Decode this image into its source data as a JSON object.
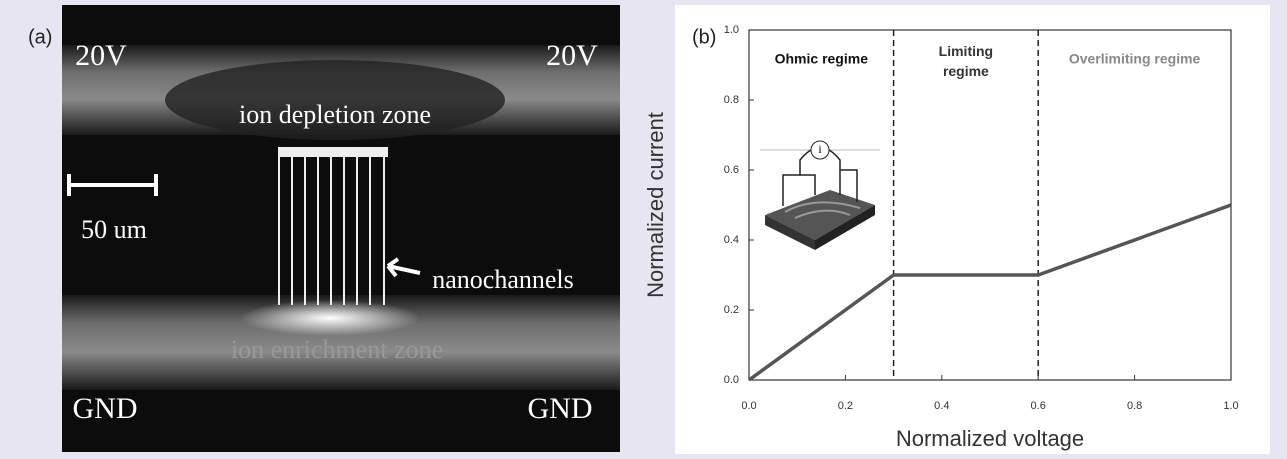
{
  "panel_a": {
    "label": "(a)",
    "top_left": "20V",
    "top_right": "20V",
    "depletion": "ion depletion zone",
    "scale_bar": "50 um",
    "nanochannels": "nanochannels",
    "enrichment": "ion enrichment zone",
    "bottom_left": "GND",
    "bottom_right": "GND"
  },
  "chart_data": {
    "type": "line",
    "panel_label": "(b)",
    "x_label": "Normalized voltage",
    "y_label": "Normalized current",
    "x": [
      0,
      0.3,
      0.6,
      1.0
    ],
    "series": [
      {
        "color": "#555555",
        "values": [
          0,
          0.3,
          0.3,
          0.5
        ]
      }
    ],
    "xlim": [
      0,
      1.0
    ],
    "ylim": [
      0,
      1.0
    ],
    "xticks": [
      {
        "value": 0,
        "label": "0.0"
      },
      0.2,
      0.4,
      0.6,
      0.8,
      {
        "value": 1,
        "label": "1.0"
      }
    ],
    "yticks": [
      {
        "value": 0,
        "label": "0.0"
      },
      0.2,
      0.4,
      0.6,
      0.8,
      {
        "value": 1,
        "label": "1.0"
      }
    ],
    "dividers": [
      0.3,
      0.6
    ],
    "regions": [
      {
        "label": "Ohmic regime",
        "color": "#111111"
      },
      {
        "label": "Limiting regime",
        "color": "#333333"
      },
      {
        "label": "Overlimiting regime",
        "color": "#888888"
      }
    ]
  }
}
